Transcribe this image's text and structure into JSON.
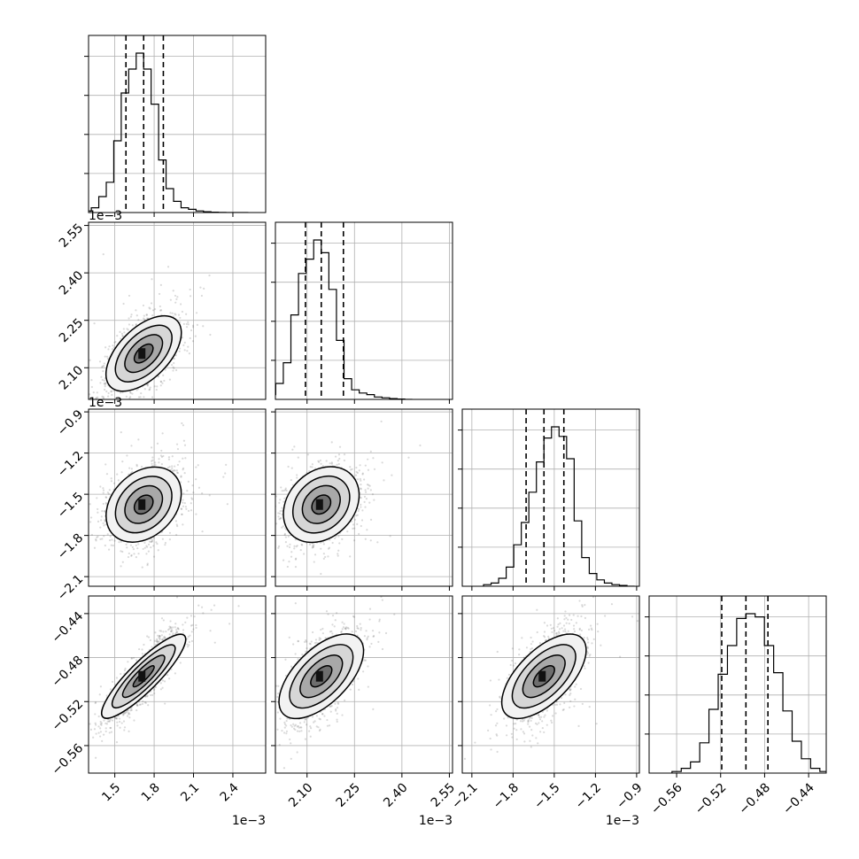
{
  "chart_data": {
    "type": "corner",
    "n_params": 4,
    "params": [
      {
        "median": 1.72,
        "q16": 1.585,
        "q84": 1.87,
        "range": [
          1.3,
          2.65
        ],
        "ticks": [
          1.5,
          1.8,
          2.1,
          2.4
        ],
        "tick_labels": [
          "1.5",
          "1.8",
          "2.1",
          "2.4"
        ],
        "offset": "1e−3"
      },
      {
        "median": 2.145,
        "q16": 2.095,
        "q84": 2.215,
        "range": [
          2.0,
          2.56
        ],
        "ticks": [
          2.1,
          2.25,
          2.4,
          2.55
        ],
        "tick_labels": [
          "2.10",
          "2.25",
          "2.40",
          "2.55"
        ],
        "offset": "1e−3"
      },
      {
        "median": -1.575,
        "q16": -1.705,
        "q84": -1.43,
        "range": [
          -2.17,
          -0.88
        ],
        "ticks": [
          -2.1,
          -1.8,
          -1.5,
          -1.2,
          -0.9
        ],
        "tick_labels": [
          "−2.1",
          "−1.8",
          "−1.5",
          "−1.2",
          "−0.9"
        ],
        "offset": "1e−3"
      },
      {
        "median": -0.497,
        "q16": -0.519,
        "q84": -0.477,
        "range": [
          -0.585,
          -0.424
        ],
        "ticks": [
          -0.56,
          -0.52,
          -0.48,
          -0.44
        ],
        "tick_labels": [
          "−0.56",
          "−0.52",
          "−0.48",
          "−0.44"
        ],
        "offset": ""
      }
    ],
    "histograms": [
      [
        0.01,
        0.03,
        0.1,
        0.19,
        0.45,
        0.75,
        0.9,
        1.0,
        0.9,
        0.68,
        0.33,
        0.15,
        0.07,
        0.03,
        0.02,
        0.01,
        0.005,
        0.002,
        0.001,
        0.0,
        0.0,
        0.0
      ],
      [
        0.01,
        0.03,
        0.1,
        0.23,
        0.53,
        0.79,
        0.88,
        1.0,
        0.92,
        0.69,
        0.37,
        0.13,
        0.06,
        0.04,
        0.03,
        0.015,
        0.01,
        0.005,
        0.002,
        0.0
      ],
      [
        0.01,
        0.02,
        0.05,
        0.12,
        0.26,
        0.4,
        0.59,
        0.78,
        0.93,
        1.0,
        0.94,
        0.8,
        0.41,
        0.18,
        0.08,
        0.04,
        0.02,
        0.01,
        0.005,
        0.0
      ],
      [
        0.01,
        0.03,
        0.07,
        0.19,
        0.4,
        0.62,
        0.8,
        0.97,
        1.0,
        0.98,
        0.8,
        0.63,
        0.39,
        0.2,
        0.09,
        0.03,
        0.01,
        0.0
      ]
    ],
    "correlations": [
      [
        1.0,
        0.55,
        0.3,
        0.88
      ],
      [
        0.55,
        1.0,
        0.25,
        0.6
      ],
      [
        0.3,
        0.25,
        1.0,
        0.62
      ],
      [
        0.88,
        0.6,
        0.62,
        1.0
      ]
    ],
    "contour_levels_sigma": [
      0.5,
      1.0,
      1.5,
      2.0
    ],
    "grid": true
  }
}
